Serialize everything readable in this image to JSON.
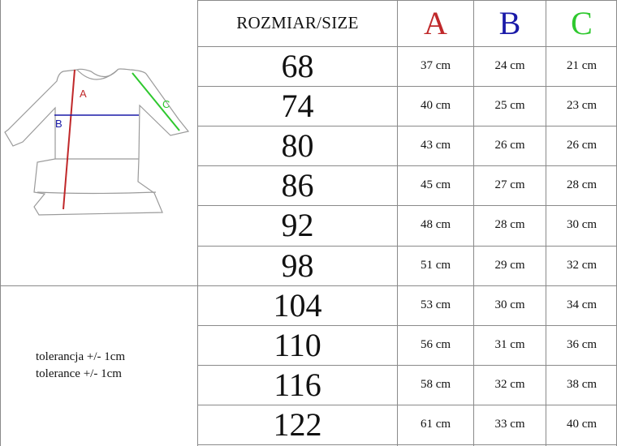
{
  "header": {
    "size_label": "ROZMIAR/SIZE",
    "col_a": "A",
    "col_b": "B",
    "col_c": "C"
  },
  "colors": {
    "a": "#c0282a",
    "b": "#1a1aa8",
    "c": "#2ec82e",
    "grid": "#8a8a8a"
  },
  "diagram": {
    "label_a": "A",
    "label_b": "B",
    "label_c": "C"
  },
  "tolerance": [
    "tolerancja +/- 1cm",
    "tolerance +/- 1cm"
  ],
  "rows": [
    {
      "size": "68",
      "a": "37 cm",
      "b": "24 cm",
      "c": "21 cm"
    },
    {
      "size": "74",
      "a": "40 cm",
      "b": "25 cm",
      "c": "23 cm"
    },
    {
      "size": "80",
      "a": "43 cm",
      "b": "26 cm",
      "c": "26 cm"
    },
    {
      "size": "86",
      "a": "45 cm",
      "b": "27 cm",
      "c": "28 cm"
    },
    {
      "size": "92",
      "a": "48 cm",
      "b": "28 cm",
      "c": "30 cm"
    },
    {
      "size": "98",
      "a": "51 cm",
      "b": "29 cm",
      "c": "32 cm"
    },
    {
      "size": "104",
      "a": "53 cm",
      "b": "30 cm",
      "c": "34 cm"
    },
    {
      "size": "110",
      "a": "56 cm",
      "b": "31 cm",
      "c": "36 cm"
    },
    {
      "size": "116",
      "a": "58 cm",
      "b": "32 cm",
      "c": "38 cm"
    },
    {
      "size": "122",
      "a": "61 cm",
      "b": "33 cm",
      "c": "40 cm"
    }
  ]
}
